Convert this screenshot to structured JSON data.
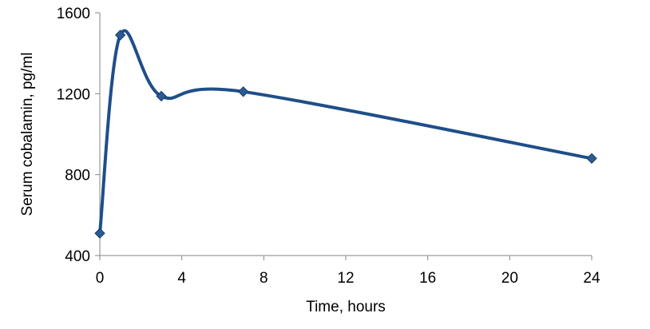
{
  "chart_data": {
    "type": "line",
    "smoothed": true,
    "title": "",
    "xlabel": "Time, hours",
    "ylabel": "Serum cobalamin, pg/ml",
    "xlim": [
      0,
      24
    ],
    "ylim": [
      400,
      1600
    ],
    "xticks": [
      0,
      4,
      8,
      12,
      16,
      20,
      24
    ],
    "yticks": [
      400,
      800,
      1200,
      1600
    ],
    "grid": false,
    "legend": "none",
    "marker": "diamond",
    "color": "#1F4E89",
    "series": [
      {
        "x": [
          0,
          1,
          3,
          7,
          24
        ],
        "y": [
          510,
          1490,
          1188,
          1210,
          880
        ]
      }
    ]
  }
}
